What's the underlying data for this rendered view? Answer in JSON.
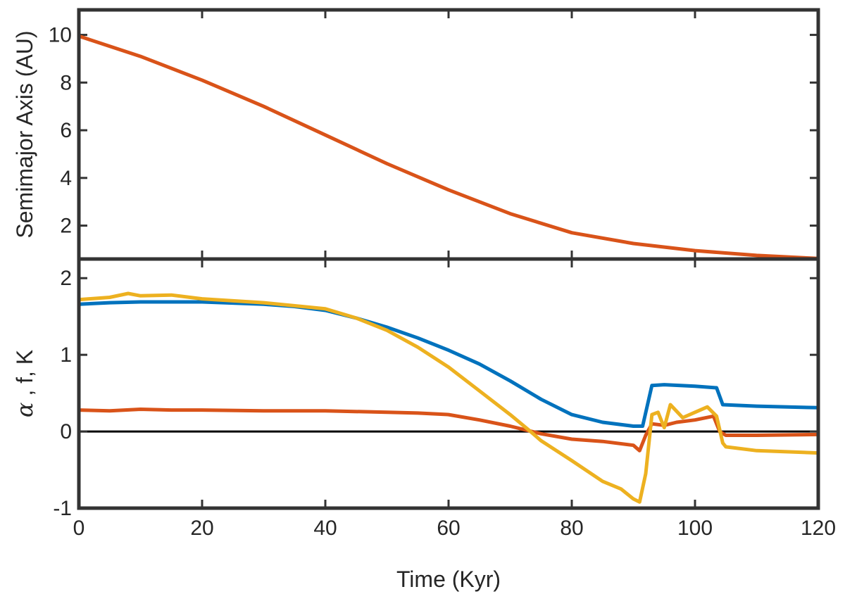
{
  "chart_data": [
    {
      "type": "line",
      "panel": "top",
      "title": "",
      "xlabel": "",
      "ylabel": "Semimajor Axis (AU)",
      "xlim": [
        0,
        120
      ],
      "ylim": [
        0.6,
        11.05
      ],
      "xticks": [
        0,
        20,
        40,
        60,
        80,
        100,
        120
      ],
      "yticks": [
        2,
        4,
        6,
        8,
        10
      ],
      "ytick_labels": [
        "2",
        "4",
        "6",
        "8",
        "10"
      ],
      "series": [
        {
          "name": "Semimajor axis",
          "color": "#D95319",
          "x": [
            0,
            10,
            20,
            30,
            40,
            50,
            60,
            70,
            80,
            90,
            100,
            110,
            120
          ],
          "y": [
            9.95,
            9.1,
            8.1,
            7.0,
            5.8,
            4.6,
            3.5,
            2.5,
            1.7,
            1.25,
            0.95,
            0.75,
            0.62
          ]
        }
      ]
    },
    {
      "type": "line",
      "panel": "bottom",
      "title": "",
      "xlabel": "Time (Kyr)",
      "ylabel_symbol": "α",
      "ylabel_rest": " , f, K",
      "xlim": [
        0,
        120
      ],
      "ylim": [
        -1,
        2.25
      ],
      "xticks": [
        0,
        20,
        40,
        60,
        80,
        100,
        120
      ],
      "xtick_labels": [
        "0",
        "20",
        "40",
        "60",
        "80",
        "100",
        "120"
      ],
      "yticks": [
        -1,
        0,
        1,
        2
      ],
      "ytick_labels": [
        "-1",
        "0",
        "1",
        "2"
      ],
      "hline": {
        "y": 0,
        "color": "#000000"
      },
      "series": [
        {
          "name": "Blue series",
          "color": "#0072BD",
          "x": [
            0,
            5,
            10,
            20,
            30,
            35,
            40,
            45,
            50,
            55,
            60,
            65,
            70,
            75,
            80,
            85,
            90,
            91.5,
            93,
            95,
            100,
            103.5,
            104.5,
            110,
            120
          ],
          "y": [
            1.66,
            1.68,
            1.69,
            1.69,
            1.66,
            1.63,
            1.58,
            1.48,
            1.36,
            1.22,
            1.06,
            0.88,
            0.66,
            0.42,
            0.22,
            0.12,
            0.07,
            0.07,
            0.6,
            0.61,
            0.59,
            0.57,
            0.35,
            0.33,
            0.31
          ]
        },
        {
          "name": "Red series",
          "color": "#D95319",
          "x": [
            0,
            5,
            10,
            15,
            20,
            30,
            40,
            50,
            55,
            60,
            65,
            70,
            75,
            80,
            85,
            90,
            91,
            92,
            93,
            95,
            97,
            100,
            103,
            104,
            105,
            110,
            120
          ],
          "y": [
            0.28,
            0.27,
            0.29,
            0.28,
            0.28,
            0.27,
            0.27,
            0.25,
            0.24,
            0.22,
            0.15,
            0.07,
            -0.03,
            -0.1,
            -0.13,
            -0.18,
            -0.25,
            -0.05,
            0.1,
            0.08,
            0.12,
            0.15,
            0.2,
            0.0,
            -0.05,
            -0.05,
            -0.04
          ]
        },
        {
          "name": "Yellow series",
          "color": "#EDB120",
          "x": [
            0,
            5,
            8,
            10,
            15,
            20,
            30,
            40,
            45,
            50,
            55,
            60,
            65,
            70,
            73,
            75,
            80,
            85,
            88,
            90,
            91,
            92,
            93,
            94,
            95,
            96,
            98,
            100,
            102,
            103.5,
            104.5,
            105,
            110,
            120
          ],
          "y": [
            1.72,
            1.75,
            1.8,
            1.77,
            1.78,
            1.73,
            1.68,
            1.6,
            1.48,
            1.32,
            1.1,
            0.84,
            0.53,
            0.22,
            0.02,
            -0.12,
            -0.38,
            -0.65,
            -0.75,
            -0.88,
            -0.92,
            -0.55,
            0.22,
            0.25,
            0.05,
            0.35,
            0.18,
            0.25,
            0.32,
            0.2,
            -0.15,
            -0.2,
            -0.25,
            -0.28
          ]
        }
      ]
    }
  ]
}
